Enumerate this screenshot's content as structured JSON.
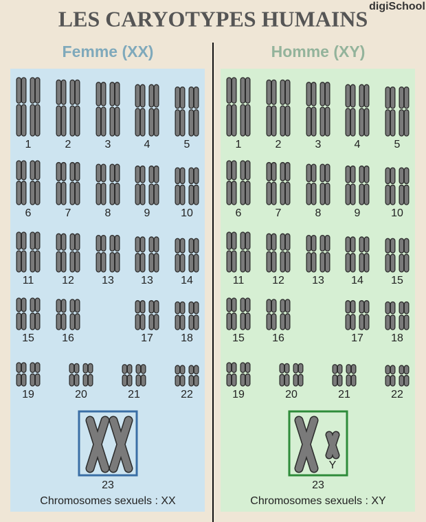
{
  "brand": "digiSchool",
  "title": "LES CARYOTYPES HUMAINS",
  "panels": [
    {
      "heading": "Femme (XX)",
      "rows": [
        [
          "1",
          "2",
          "3",
          "4",
          "5"
        ],
        [
          "6",
          "7",
          "8",
          "9",
          "10"
        ],
        [
          "11",
          "12",
          "13",
          "13",
          "14"
        ],
        [
          "15",
          "16",
          "17",
          "18"
        ],
        [
          "19",
          "20",
          "21",
          "22"
        ]
      ],
      "pair_number": "23",
      "caption": "Chromosomes sexuels : XX"
    },
    {
      "heading": "Homme (XY)",
      "rows": [
        [
          "1",
          "2",
          "3",
          "4",
          "5"
        ],
        [
          "6",
          "7",
          "8",
          "9",
          "10"
        ],
        [
          "11",
          "12",
          "13",
          "14",
          "15"
        ],
        [
          "15",
          "16",
          "17",
          "18"
        ],
        [
          "19",
          "20",
          "21",
          "22"
        ]
      ],
      "y_label": "Y",
      "pair_number": "23",
      "caption": "Chromosomes sexuels : XY"
    }
  ]
}
